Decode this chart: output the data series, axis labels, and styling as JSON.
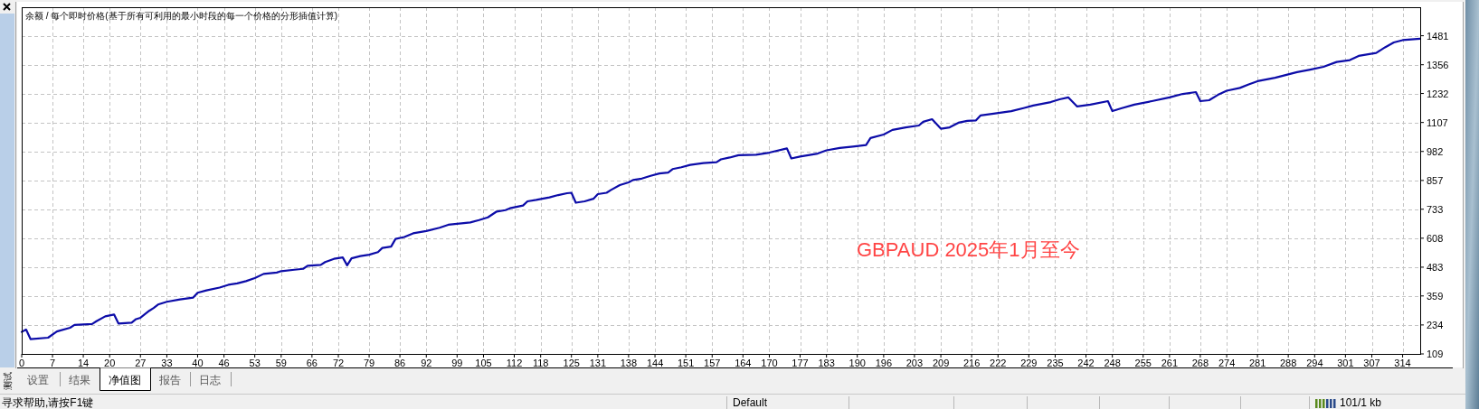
{
  "chart_data": {
    "type": "line",
    "title": "余额 / 每个即时价格(基于所有可利用的最小时段的每一个价格的分形插值计算)",
    "x": [
      0,
      1,
      2,
      6,
      8,
      11,
      12,
      16,
      17,
      19,
      21,
      22,
      25,
      26,
      27,
      29,
      30,
      31,
      33,
      36,
      39,
      40,
      42,
      45,
      47,
      49,
      51,
      53,
      55,
      58,
      59,
      62,
      64,
      65,
      68,
      69,
      71,
      73,
      74,
      75,
      77,
      79,
      81,
      82,
      84,
      85,
      87,
      89,
      92,
      95,
      97,
      100,
      102,
      104,
      106,
      108,
      110,
      111,
      114,
      115,
      117,
      120,
      122,
      124,
      125,
      126,
      128,
      130,
      131,
      133,
      134,
      136,
      138,
      139,
      141,
      143,
      145,
      147,
      148,
      150,
      152,
      155,
      158,
      159,
      161,
      163,
      167,
      170,
      174,
      175,
      177,
      181,
      183,
      186,
      189,
      192,
      193,
      196,
      198,
      201,
      204,
      205,
      207,
      209,
      211,
      213,
      215,
      217,
      218,
      221,
      225,
      228,
      230,
      234,
      236,
      238,
      240,
      243,
      247,
      248,
      250,
      253,
      257,
      261,
      264,
      267,
      268,
      270,
      272,
      274,
      277,
      279,
      281,
      285,
      290,
      293,
      296,
      299,
      302,
      304,
      308,
      310,
      312,
      314,
      318
    ],
    "series": [
      {
        "color": "#0c0ca8",
        "values": [
          204,
          214,
          173,
          179,
          206,
          222,
          234,
          238,
          250,
          271,
          279,
          240,
          244,
          259,
          265,
          295,
          307,
          322,
          334,
          344,
          352,
          373,
          383,
          395,
          407,
          413,
          423,
          436,
          454,
          460,
          466,
          472,
          476,
          489,
          493,
          505,
          519,
          525,
          491,
          521,
          531,
          537,
          548,
          566,
          572,
          605,
          613,
          629,
          639,
          653,
          666,
          672,
          676,
          686,
          698,
          723,
          729,
          737,
          749,
          767,
          773,
          784,
          794,
          802,
          804,
          761,
          767,
          778,
          798,
          804,
          816,
          837,
          849,
          859,
          865,
          877,
          887,
          891,
          906,
          914,
          924,
          932,
          936,
          948,
          956,
          966,
          968,
          977,
          995,
          952,
          960,
          973,
          987,
          997,
          1003,
          1010,
          1040,
          1055,
          1075,
          1086,
          1094,
          1110,
          1121,
          1080,
          1086,
          1106,
          1114,
          1116,
          1137,
          1145,
          1156,
          1170,
          1180,
          1195,
          1207,
          1215,
          1176,
          1184,
          1199,
          1156,
          1168,
          1184,
          1199,
          1215,
          1230,
          1238,
          1199,
          1203,
          1226,
          1244,
          1256,
          1271,
          1285,
          1300,
          1324,
          1335,
          1347,
          1368,
          1376,
          1394,
          1407,
          1431,
          1452,
          1462,
          1468
        ]
      }
    ],
    "xlim": [
      0,
      318
    ],
    "xticks": [
      0,
      7,
      14,
      20,
      27,
      33,
      40,
      46,
      53,
      59,
      66,
      72,
      79,
      86,
      92,
      99,
      105,
      112,
      118,
      125,
      131,
      138,
      144,
      151,
      157,
      164,
      170,
      177,
      183,
      190,
      196,
      203,
      209,
      216,
      222,
      229,
      235,
      242,
      248,
      255,
      261,
      268,
      274,
      281,
      288,
      294,
      301,
      307,
      314
    ],
    "ylim": [
      109,
      1604
    ],
    "yticks": [
      109,
      234,
      359,
      483,
      608,
      733,
      857,
      982,
      1107,
      1232,
      1356,
      1481
    ],
    "grid": true,
    "annotations": [
      "GBPAUD 2025年1月至今",
      "设置",
      "结果",
      "净值图",
      "报告",
      "日志",
      "寻求帮助,请按F1键",
      "Default",
      "101/1 kb",
      "测试"
    ]
  }
}
